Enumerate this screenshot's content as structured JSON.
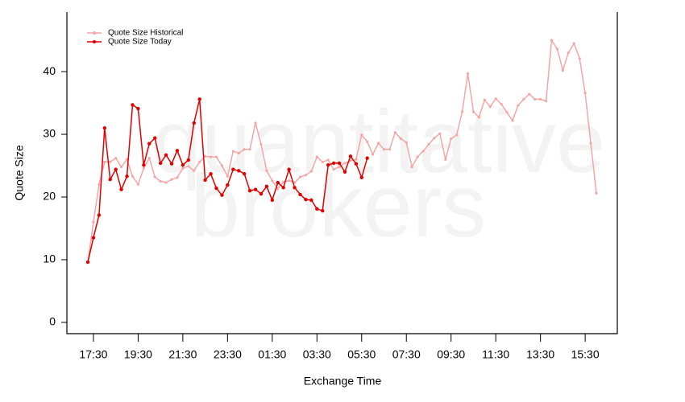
{
  "chart_data": {
    "type": "line",
    "watermark": [
      "quantitative",
      "brokers"
    ],
    "x_label": "Exchange Time",
    "y_label": "Quote Size",
    "categories": [
      null,
      "17:30",
      null,
      null,
      null,
      null,
      null,
      null,
      null,
      "19:30",
      null,
      null,
      null,
      null,
      null,
      null,
      null,
      "21:30",
      null,
      null,
      null,
      null,
      null,
      null,
      null,
      "23:30",
      null,
      null,
      null,
      null,
      null,
      null,
      null,
      "01:30",
      null,
      null,
      null,
      null,
      null,
      null,
      null,
      "03:30",
      null,
      null,
      null,
      null,
      null,
      null,
      null,
      "05:30",
      null,
      null,
      null,
      null,
      null,
      null,
      null,
      "07:30",
      null,
      null,
      null,
      null,
      null,
      null,
      null,
      "09:30",
      null,
      null,
      null,
      null,
      null,
      null,
      null,
      "11:30",
      null,
      null,
      null,
      null,
      null,
      null,
      null,
      "13:30",
      null,
      null,
      null,
      null,
      null,
      null,
      null,
      "15:30",
      null,
      null
    ],
    "series": [
      {
        "name": "Quote Size Historical",
        "color": "#f4a6a6",
        "values": [
          9.6,
          16,
          22,
          25.6,
          25.6,
          26.2,
          24.8,
          26.0,
          23.3,
          22.0,
          24.6,
          26.2,
          23.2,
          22.5,
          22.3,
          22.8,
          23.1,
          24.6,
          24.9,
          24.2,
          25.6,
          26.5,
          26.4,
          26.4,
          25.0,
          23.3,
          27.3,
          27.0,
          27.6,
          27.6,
          31.8,
          28.4,
          24.2,
          22.6,
          21.3,
          22.4,
          22.6,
          22.3,
          23.2,
          23.5,
          24.1,
          26.4,
          25.6,
          25.9,
          24.4,
          24.8,
          25.4,
          25.8,
          26.0,
          29.9,
          28.8,
          26.8,
          28.6,
          27.6,
          27.6,
          30.3,
          29.3,
          28.7,
          24.8,
          26.4,
          27.3,
          28.4,
          29.4,
          30.1,
          26.0,
          29.3,
          29.9,
          33.6,
          39.7,
          33.6,
          32.7,
          35.5,
          34.4,
          35.7,
          34.8,
          33.5,
          32.2,
          34.6,
          35.6,
          36.4,
          35.6,
          35.6,
          35.3,
          45.0,
          43.6,
          40.2,
          43.0,
          44.5,
          42.1,
          36.6,
          28.6,
          20.6
        ]
      },
      {
        "name": "Quote Size Today",
        "color": "#e00000",
        "values": [
          9.6,
          13.5,
          17.1,
          31.0,
          22.8,
          24.4,
          21.2,
          23.3,
          34.7,
          34.1,
          25.1,
          28.5,
          29.4,
          25.4,
          26.7,
          25.3,
          27.4,
          25.1,
          25.9,
          31.8,
          35.6,
          22.7,
          23.7,
          21.4,
          20.3,
          21.9,
          24.4,
          24.2,
          23.7,
          21.0,
          21.2,
          20.5,
          21.7,
          19.5,
          22.3,
          21.5,
          24.4,
          21.5,
          20.4,
          19.6,
          19.5,
          18.1,
          17.8,
          25.1,
          25.4,
          25.4,
          24.0,
          26.5,
          25.3,
          23.1,
          26.2,
          null,
          null,
          null,
          null,
          null,
          null,
          null,
          null,
          null,
          null,
          null,
          null,
          null,
          null,
          null,
          null,
          null,
          null,
          null,
          null,
          null,
          null,
          null,
          null,
          null,
          null,
          null,
          null,
          null,
          null,
          null,
          null,
          null,
          null,
          null,
          null,
          null,
          null,
          null,
          null,
          null
        ]
      }
    ],
    "ylim": [
      -1.8,
      49.5
    ],
    "yticks": [
      0,
      10,
      20,
      30,
      40
    ],
    "grid": false,
    "legend": "upper left"
  }
}
